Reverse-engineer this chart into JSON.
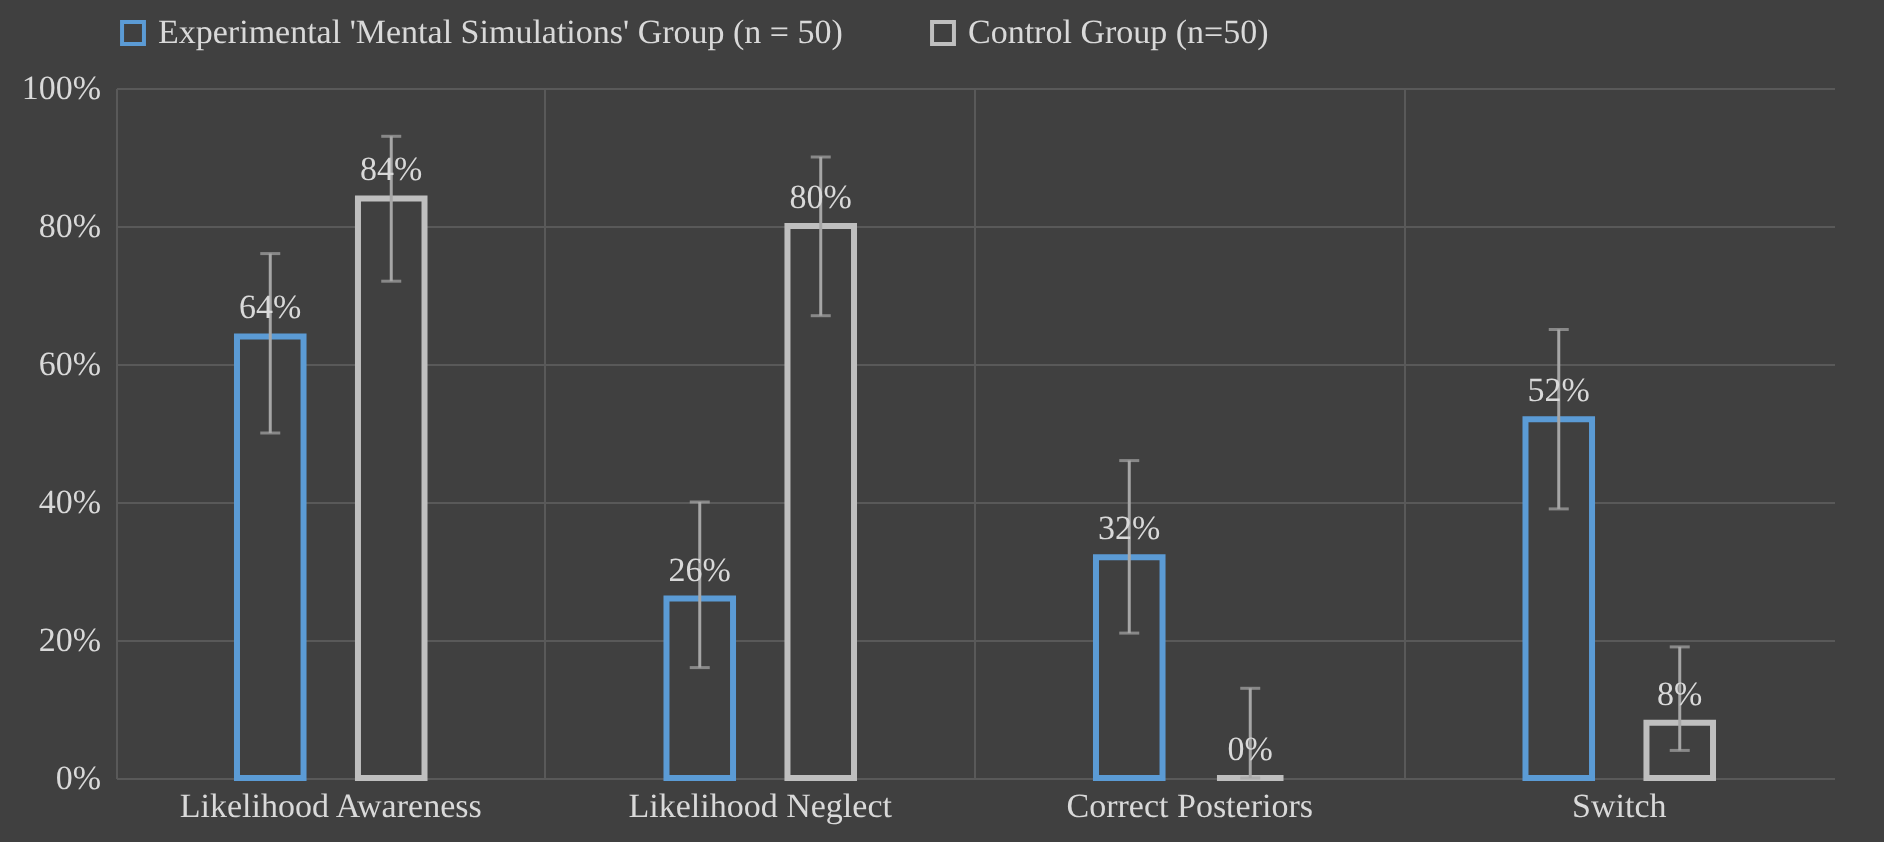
{
  "chart_data": {
    "type": "bar",
    "categories": [
      "Likelihood Awareness",
      "Likelihood Neglect",
      "Correct Posteriors",
      "Switch"
    ],
    "series": [
      {
        "name": "Experimental 'Mental Simulations' Group (n = 50)",
        "color": "#5b9bd5",
        "values": [
          64,
          26,
          32,
          52
        ],
        "errors": [
          [
            50,
            76
          ],
          [
            16,
            40
          ],
          [
            21,
            46
          ],
          [
            39,
            65
          ]
        ],
        "value_labels": [
          "64%",
          "26%",
          "32%",
          "52%"
        ]
      },
      {
        "name": "Control Group (n=50)",
        "color": "#bfbfbf",
        "values": [
          84,
          80,
          0,
          8
        ],
        "errors": [
          [
            72,
            93
          ],
          [
            67,
            90
          ],
          [
            0,
            13
          ],
          [
            4,
            19
          ]
        ],
        "value_labels": [
          "84%",
          "80%",
          "0%",
          "8%"
        ]
      }
    ],
    "ylim": [
      0,
      100
    ],
    "yticks": [
      {
        "value": 0,
        "label": "0%"
      },
      {
        "value": 20,
        "label": "20%"
      },
      {
        "value": 40,
        "label": "40%"
      },
      {
        "value": 60,
        "label": "60%"
      },
      {
        "value": 80,
        "label": "80%"
      },
      {
        "value": 100,
        "label": "100%"
      }
    ],
    "grid": true,
    "legend": "top"
  }
}
